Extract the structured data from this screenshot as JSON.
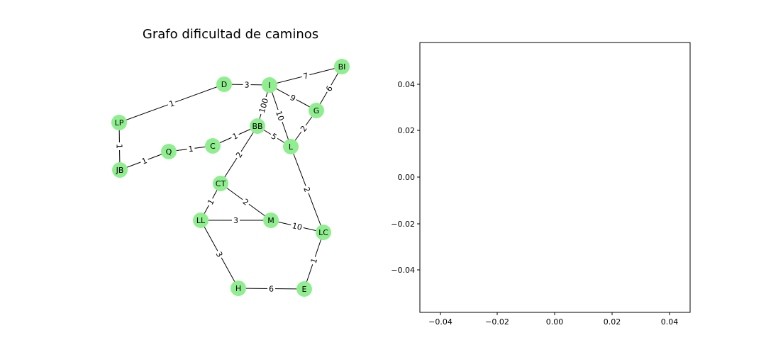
{
  "figure": {
    "title": "Grafo dificultad de caminos",
    "node_color": "#90ee90"
  },
  "graph": {
    "nodes": [
      {
        "id": "D",
        "label": "D"
      },
      {
        "id": "I",
        "label": "I"
      },
      {
        "id": "BI",
        "label": "BI"
      },
      {
        "id": "LP",
        "label": "LP"
      },
      {
        "id": "G",
        "label": "G"
      },
      {
        "id": "BB",
        "label": "BB"
      },
      {
        "id": "C",
        "label": "C"
      },
      {
        "id": "Q",
        "label": "Q"
      },
      {
        "id": "L",
        "label": "L"
      },
      {
        "id": "JB",
        "label": "JB"
      },
      {
        "id": "CT",
        "label": "CT"
      },
      {
        "id": "LL",
        "label": "LL"
      },
      {
        "id": "M",
        "label": "M"
      },
      {
        "id": "LC",
        "label": "LC"
      },
      {
        "id": "H",
        "label": "H"
      },
      {
        "id": "E",
        "label": "E"
      }
    ],
    "edges": [
      {
        "from": "LP",
        "to": "D",
        "weight": "1"
      },
      {
        "from": "D",
        "to": "I",
        "weight": "3"
      },
      {
        "from": "I",
        "to": "BI",
        "weight": "7"
      },
      {
        "from": "I",
        "to": "G",
        "weight": "9"
      },
      {
        "from": "BI",
        "to": "G",
        "weight": "6"
      },
      {
        "from": "I",
        "to": "BB",
        "weight": "100"
      },
      {
        "from": "I",
        "to": "L",
        "weight": "10"
      },
      {
        "from": "G",
        "to": "L",
        "weight": "2"
      },
      {
        "from": "BB",
        "to": "L",
        "weight": "5"
      },
      {
        "from": "C",
        "to": "BB",
        "weight": "1"
      },
      {
        "from": "Q",
        "to": "C",
        "weight": "1"
      },
      {
        "from": "JB",
        "to": "Q",
        "weight": "1"
      },
      {
        "from": "LP",
        "to": "JB",
        "weight": "1"
      },
      {
        "from": "BB",
        "to": "CT",
        "weight": "2"
      },
      {
        "from": "CT",
        "to": "LL",
        "weight": "1"
      },
      {
        "from": "CT",
        "to": "M",
        "weight": "2"
      },
      {
        "from": "LL",
        "to": "M",
        "weight": "3"
      },
      {
        "from": "M",
        "to": "LC",
        "weight": "10"
      },
      {
        "from": "L",
        "to": "LC",
        "weight": "2"
      },
      {
        "from": "LC",
        "to": "E",
        "weight": "1"
      },
      {
        "from": "LL",
        "to": "H",
        "weight": "3"
      },
      {
        "from": "H",
        "to": "E",
        "weight": "6"
      }
    ]
  },
  "empty_axes": {
    "x_ticks": [
      "−0.04",
      "−0.02",
      "0.00",
      "0.02",
      "0.04"
    ],
    "y_ticks": [
      "0.04",
      "0.02",
      "0.00",
      "−0.02",
      "−0.04"
    ]
  }
}
